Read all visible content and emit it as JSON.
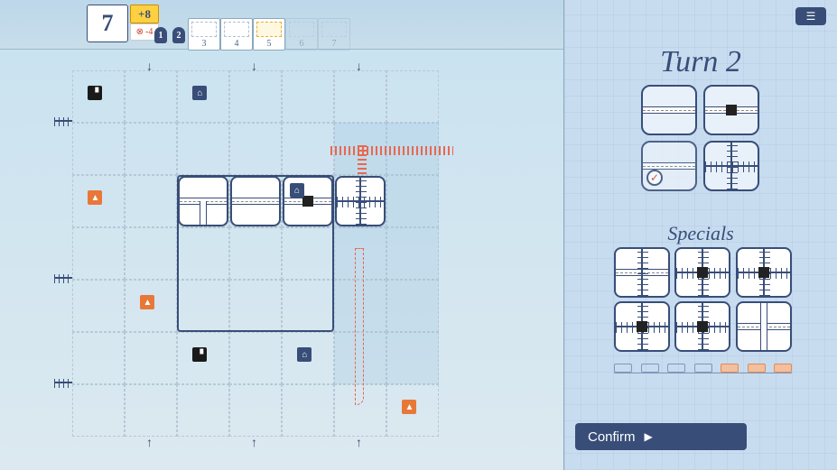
{
  "score": {
    "main": "7",
    "bonus": "+8",
    "penalty": "-4"
  },
  "rounds": {
    "completed_markers": [
      "1",
      "2"
    ],
    "tiles": [
      {
        "num": "3",
        "state": "open"
      },
      {
        "num": "4",
        "state": "open"
      },
      {
        "num": "5",
        "state": "selected"
      },
      {
        "num": "6",
        "state": "dim"
      },
      {
        "num": "7",
        "state": "dim"
      }
    ]
  },
  "turn": {
    "label": "Turn",
    "number": "2"
  },
  "specials_label": "Specials",
  "confirm_label": "Confirm",
  "inner_box": {
    "col": 2,
    "row": 2,
    "w": 3,
    "h": 3
  },
  "placed_tiles": [
    {
      "col": 2,
      "row": 2,
      "kind": "road-t"
    },
    {
      "col": 3,
      "row": 2,
      "kind": "road-straight"
    },
    {
      "col": 4,
      "row": 2,
      "kind": "road-station",
      "icon": "house"
    },
    {
      "col": 5,
      "row": 2,
      "kind": "rail-cross"
    }
  ],
  "grid_icons": [
    {
      "col": 0.3,
      "row": 0.3,
      "style": "dark",
      "glyph": "▝"
    },
    {
      "col": 2.3,
      "row": 0.3,
      "style": "navy",
      "glyph": "⌂"
    },
    {
      "col": 0.3,
      "row": 2.3,
      "style": "orange",
      "glyph": "▲"
    },
    {
      "col": 1.3,
      "row": 4.3,
      "style": "orange",
      "glyph": "▲"
    },
    {
      "col": 2.3,
      "row": 5.3,
      "style": "dark",
      "glyph": "▝"
    },
    {
      "col": 4.3,
      "row": 5.3,
      "style": "navy",
      "glyph": "⌂"
    },
    {
      "col": 6.3,
      "row": 6.3,
      "style": "orange",
      "glyph": "▲"
    }
  ],
  "dice": [
    {
      "kind": "road-straight",
      "used": false
    },
    {
      "kind": "road-station",
      "used": false
    },
    {
      "kind": "road-straight",
      "used": true
    },
    {
      "kind": "rail-cross",
      "used": false
    }
  ],
  "specials": [
    "rail-road-cross",
    "rail-junction",
    "rail-junction",
    "rail-junction",
    "rail-junction",
    "road-cross"
  ],
  "colors": {
    "ink": "#384e78",
    "accent": "#e86850",
    "highlight": "#ffd040",
    "panel": "#c8dcf0",
    "board": "#d4e8f4"
  }
}
